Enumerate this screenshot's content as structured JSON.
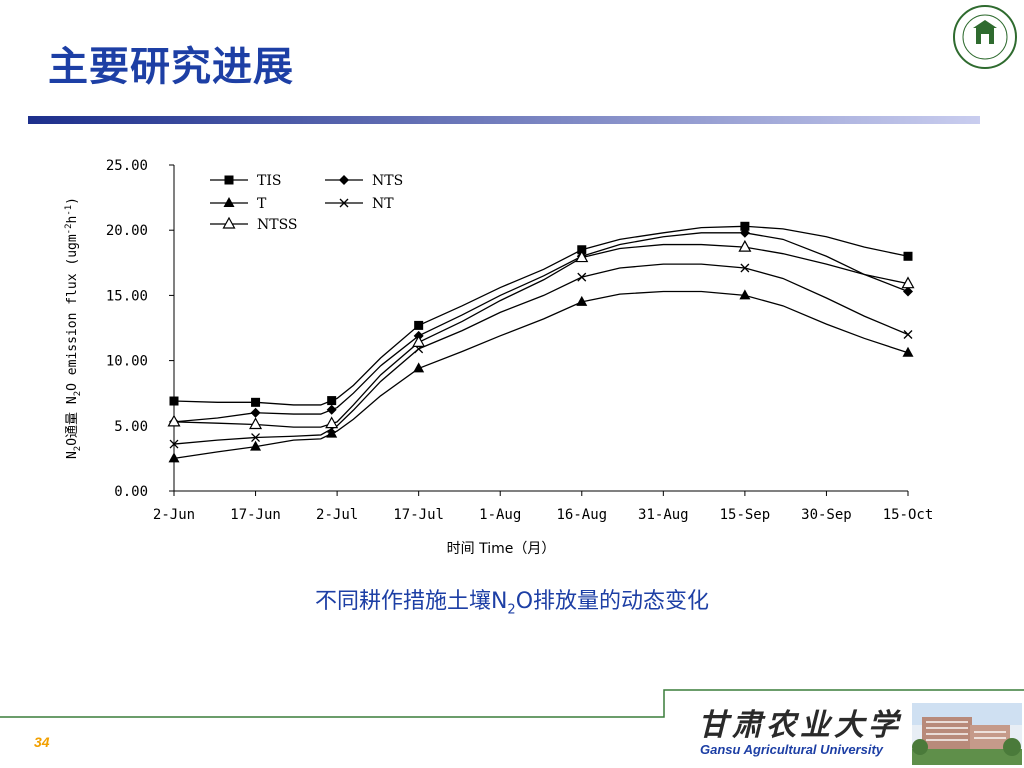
{
  "slide": {
    "title": "主要研究进展",
    "page_number": "34",
    "caption_pre": "不同耕作措施土壤N",
    "caption_sub": "2",
    "caption_post": "O排放量的动态变化",
    "university_cn": "甘肃农业大学",
    "university_en": "Gansu Agricultural University"
  },
  "colors": {
    "title": "#1d3fa5",
    "rule_dark": "#1d2f8c",
    "rule_light": "#c9cdef",
    "page_number": "#f2a000",
    "footer_line": "#3a7d3a"
  },
  "chart_data": {
    "type": "line",
    "ylabel_pre": "N",
    "ylabel_sub": "2",
    "ylabel_mid": "O通量  N",
    "ylabel_sub2": "2",
    "ylabel_post": "O emission flux (ugm",
    "ylabel_sup1": "-2",
    "ylabel_h": "h",
    "ylabel_sup2": "-1",
    "ylabel_close": ")",
    "xlabel": "时间  Time（月）",
    "ylim": [
      0,
      25
    ],
    "yticks": [
      "0.00",
      "5.00",
      "10.00",
      "15.00",
      "20.00",
      "25.00"
    ],
    "ytick_values": [
      0,
      5,
      10,
      15,
      20,
      25
    ],
    "xticks": [
      "2-Jun",
      "17-Jun",
      "2-Jul",
      "17-Jul",
      "1-Aug",
      "16-Aug",
      "31-Aug",
      "15-Sep",
      "30-Sep",
      "15-Oct"
    ],
    "xtick_days": [
      0,
      15,
      30,
      45,
      60,
      75,
      90,
      105,
      120,
      135
    ],
    "x_days": [
      0,
      8,
      15,
      22,
      27,
      30,
      33,
      38,
      45,
      53,
      60,
      68,
      75,
      82,
      90,
      97,
      105,
      112,
      120,
      127,
      135
    ],
    "grid": false,
    "legend_position": "top-left",
    "series": [
      {
        "name": "TIS",
        "marker": "square",
        "values": [
          6.9,
          6.8,
          6.8,
          6.6,
          6.6,
          7.1,
          8.1,
          10.2,
          12.7,
          14.2,
          15.6,
          17.0,
          18.5,
          19.3,
          19.8,
          20.2,
          20.3,
          20.1,
          19.5,
          18.7,
          18.0
        ],
        "marker_days": [
          0,
          15,
          29,
          45,
          75,
          105,
          135
        ]
      },
      {
        "name": "NTS",
        "marker": "diamond",
        "values": [
          5.3,
          5.6,
          6.0,
          5.9,
          5.9,
          6.4,
          7.5,
          9.6,
          11.9,
          13.5,
          15.0,
          16.5,
          18.0,
          18.9,
          19.5,
          19.8,
          19.8,
          19.3,
          18.0,
          16.6,
          15.3
        ],
        "marker_days": [
          0,
          15,
          29,
          45,
          75,
          105,
          135
        ]
      },
      {
        "name": "T",
        "marker": "triangle-filled",
        "values": [
          2.5,
          3.0,
          3.4,
          3.9,
          4.0,
          4.6,
          5.5,
          7.3,
          9.4,
          10.7,
          11.9,
          13.2,
          14.5,
          15.1,
          15.3,
          15.3,
          15.0,
          14.2,
          12.8,
          11.7,
          10.6
        ],
        "marker_days": [
          0,
          15,
          29,
          45,
          75,
          105,
          135
        ]
      },
      {
        "name": "NT",
        "marker": "x",
        "values": [
          3.6,
          3.9,
          4.1,
          4.2,
          4.3,
          5.0,
          6.2,
          8.4,
          10.9,
          12.3,
          13.7,
          15.0,
          16.4,
          17.1,
          17.4,
          17.4,
          17.1,
          16.3,
          14.8,
          13.4,
          12.0
        ],
        "marker_days": [
          0,
          15,
          29,
          45,
          75,
          105,
          135
        ]
      },
      {
        "name": "NTSS",
        "marker": "triangle-open",
        "values": [
          5.3,
          5.2,
          5.1,
          4.9,
          4.9,
          5.3,
          6.6,
          8.9,
          11.4,
          13.0,
          14.6,
          16.2,
          17.9,
          18.6,
          18.9,
          18.9,
          18.7,
          18.2,
          17.4,
          16.6,
          15.9
        ],
        "marker_days": [
          0,
          15,
          29,
          45,
          75,
          105,
          135
        ]
      }
    ]
  }
}
